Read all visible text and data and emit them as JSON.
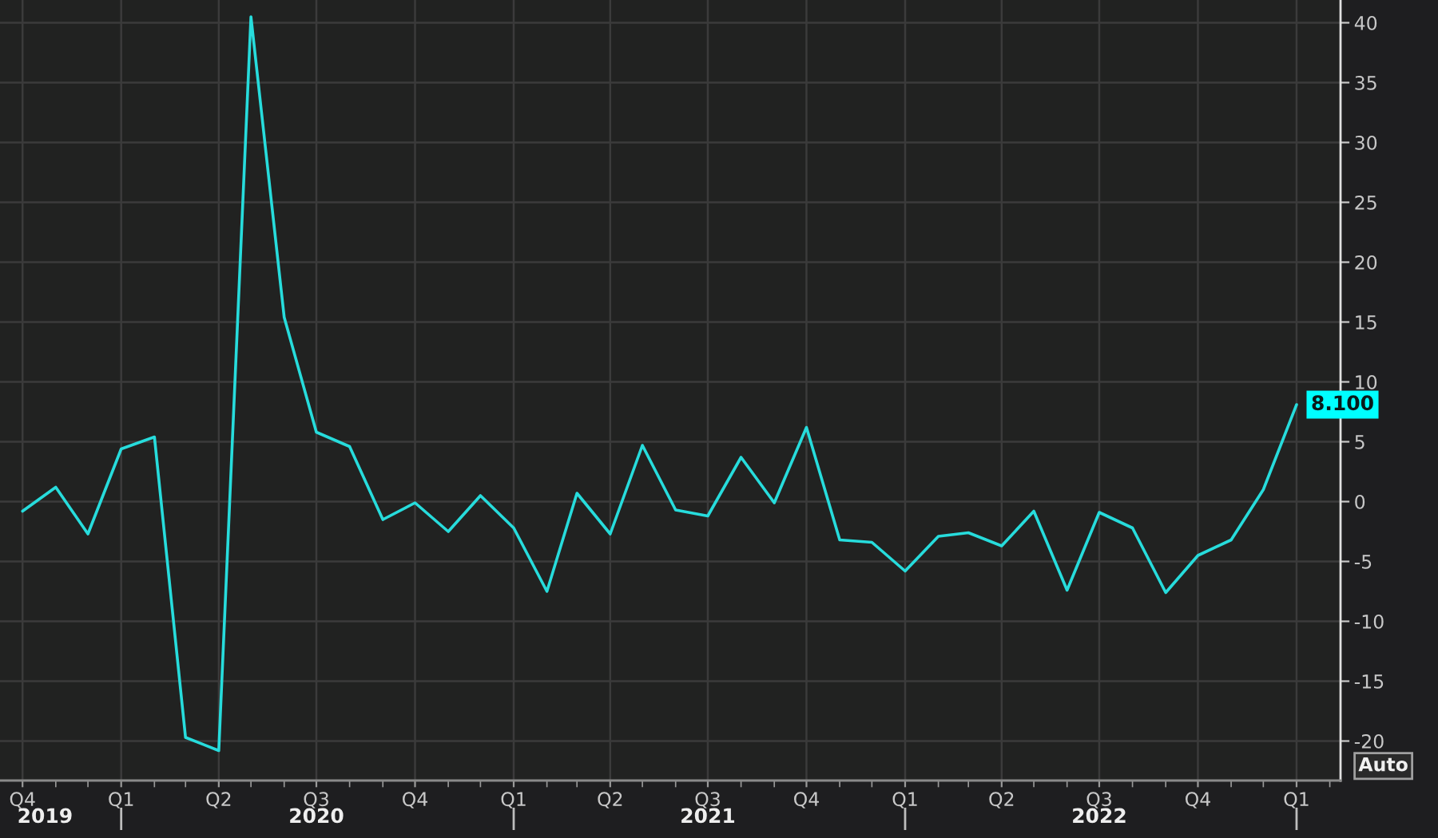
{
  "chart_data": {
    "type": "line",
    "line_style": "solid",
    "grid": true,
    "x": [
      "2019-10",
      "2019-11",
      "2019-12",
      "2020-01",
      "2020-02",
      "2020-03",
      "2020-04",
      "2020-05",
      "2020-06",
      "2020-07",
      "2020-08",
      "2020-09",
      "2020-10",
      "2020-11",
      "2020-12",
      "2021-01",
      "2021-02",
      "2021-03",
      "2021-04",
      "2021-05",
      "2021-06",
      "2021-07",
      "2021-08",
      "2021-09",
      "2021-10",
      "2021-11",
      "2021-12",
      "2022-01",
      "2022-02",
      "2022-03",
      "2022-04",
      "2022-05",
      "2022-06",
      "2022-07",
      "2022-08",
      "2022-09",
      "2022-10",
      "2022-11",
      "2022-12",
      "2023-01"
    ],
    "series": [
      {
        "color": "#27dcdc",
        "values": [
          -0.8,
          1.2,
          -2.7,
          4.4,
          5.4,
          -19.7,
          -20.8,
          40.5,
          15.4,
          5.8,
          4.6,
          -1.5,
          -0.1,
          -2.5,
          0.5,
          -2.2,
          -7.5,
          0.7,
          -2.7,
          4.7,
          -0.7,
          -1.2,
          3.7,
          -0.1,
          6.2,
          -3.2,
          -3.4,
          -5.8,
          -2.9,
          -2.6,
          -3.7,
          -0.8,
          -7.4,
          -0.9,
          -2.2,
          -7.6,
          -4.5,
          -3.2,
          1.0,
          8.1
        ],
        "value_labels": [
          null,
          null,
          null,
          null,
          null,
          null,
          null,
          null,
          null,
          null,
          null,
          null,
          null,
          null,
          null,
          null,
          null,
          null,
          null,
          null,
          null,
          null,
          null,
          null,
          null,
          null,
          null,
          null,
          null,
          null,
          null,
          null,
          null,
          null,
          null,
          null,
          null,
          null,
          null,
          "8.100"
        ]
      }
    ],
    "xlim": [
      "2019-09-10",
      "2023-02-11"
    ],
    "xticks": [
      {
        "value": "2019-10",
        "label": "Q4"
      },
      {
        "value": "2019-11",
        "label": null
      },
      {
        "value": "2019-12",
        "label": null
      },
      {
        "value": "2020-01",
        "label": "Q1"
      },
      {
        "value": "2020-02",
        "label": null
      },
      {
        "value": "2020-03",
        "label": null
      },
      {
        "value": "2020-04",
        "label": "Q2"
      },
      {
        "value": "2020-05",
        "label": null
      },
      {
        "value": "2020-06",
        "label": null
      },
      {
        "value": "2020-07",
        "label": "Q3"
      },
      {
        "value": "2020-08",
        "label": null
      },
      {
        "value": "2020-09",
        "label": null
      },
      {
        "value": "2020-10",
        "label": "Q4"
      },
      {
        "value": "2020-11",
        "label": null
      },
      {
        "value": "2020-12",
        "label": null
      },
      {
        "value": "2021-01",
        "label": "Q1"
      },
      {
        "value": "2021-02",
        "label": null
      },
      {
        "value": "2021-03",
        "label": null
      },
      {
        "value": "2021-04",
        "label": "Q2"
      },
      {
        "value": "2021-05",
        "label": null
      },
      {
        "value": "2021-06",
        "label": null
      },
      {
        "value": "2021-07",
        "label": "Q3"
      },
      {
        "value": "2021-08",
        "label": null
      },
      {
        "value": "2021-09",
        "label": null
      },
      {
        "value": "2021-10",
        "label": "Q4"
      },
      {
        "value": "2021-11",
        "label": null
      },
      {
        "value": "2021-12",
        "label": null
      },
      {
        "value": "2022-01",
        "label": "Q1"
      },
      {
        "value": "2022-02",
        "label": null
      },
      {
        "value": "2022-03",
        "label": null
      },
      {
        "value": "2022-04",
        "label": "Q2"
      },
      {
        "value": "2022-05",
        "label": null
      },
      {
        "value": "2022-06",
        "label": null
      },
      {
        "value": "2022-07",
        "label": "Q3"
      },
      {
        "value": "2022-08",
        "label": null
      },
      {
        "value": "2022-09",
        "label": null
      },
      {
        "value": "2022-10",
        "label": "Q4"
      },
      {
        "value": "2022-11",
        "label": null
      },
      {
        "value": "2022-12",
        "label": null
      },
      {
        "value": "2023-01",
        "label": "Q1"
      },
      {
        "value": "2023-02",
        "label": null
      }
    ],
    "x2lim": [
      "2019-09-10",
      "2023-02-11"
    ],
    "x2ticks": [
      {
        "value": "2019-10-22",
        "label": "2019"
      },
      {
        "value": "2020-01",
        "label": null
      },
      {
        "value": "2020-07",
        "label": "2020"
      },
      {
        "value": "2021-01",
        "label": null
      },
      {
        "value": "2021-07",
        "label": "2021"
      },
      {
        "value": "2022-01",
        "label": null
      },
      {
        "value": "2022-07",
        "label": "2022"
      },
      {
        "value": "2023-01",
        "label": null
      }
    ],
    "ylim": [
      -23.3,
      41.9
    ],
    "yticks": [
      -20,
      -15,
      -10,
      -5,
      0,
      5,
      10,
      15,
      20,
      25,
      30,
      35,
      40
    ],
    "annotations": [
      "Auto"
    ]
  }
}
